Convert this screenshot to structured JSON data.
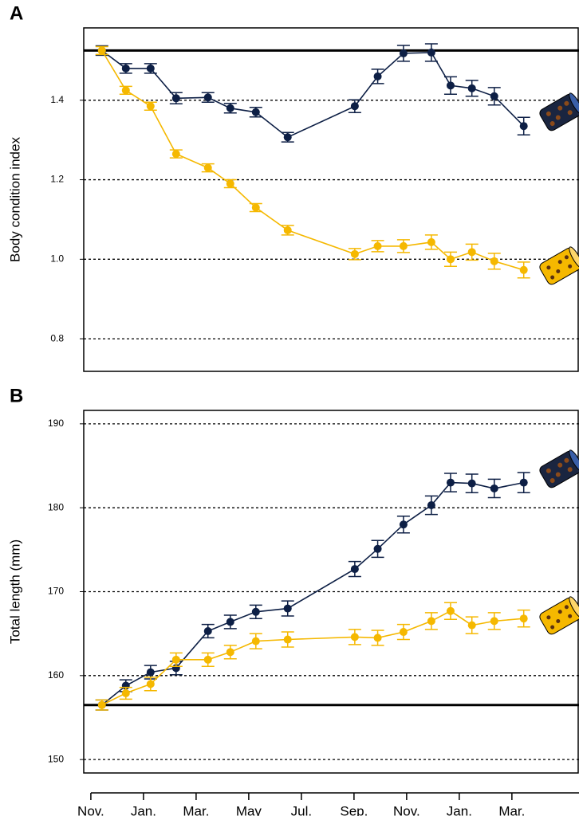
{
  "chart_data": [
    {
      "type": "line",
      "panel": "A",
      "ylabel": "Body condition index",
      "x": [
        0.42,
        1.33,
        2.27,
        3.24,
        4.45,
        5.3,
        6.27,
        7.48,
        10.03,
        10.9,
        11.88,
        12.94,
        13.67,
        14.48,
        15.33,
        16.45
      ],
      "xlim": [
        -0.27,
        18.55
      ],
      "ylim": [
        0.718,
        1.582
      ],
      "yticks": [
        0.8,
        {
          "value": 1,
          "label": "1.0"
        },
        1.2,
        1.4
      ],
      "grid": true,
      "reference": 1.525,
      "series": [
        {
          "color": "#0d1f45",
          "values": [
            1.525,
            1.48,
            1.48,
            1.405,
            1.407,
            1.38,
            1.37,
            1.307,
            1.385,
            1.46,
            1.518,
            1.52,
            1.437,
            1.43,
            1.41,
            1.335
          ],
          "errors": [
            0.012,
            0.012,
            0.012,
            0.014,
            0.012,
            0.012,
            0.012,
            0.012,
            0.016,
            0.018,
            0.02,
            0.022,
            0.022,
            0.02,
            0.022,
            0.022
          ]
        },
        {
          "color": "#f5b800",
          "values": [
            1.525,
            1.425,
            1.385,
            1.265,
            1.23,
            1.19,
            1.13,
            1.073,
            1.013,
            1.033,
            1.033,
            1.043,
            1.0,
            1.018,
            0.995,
            0.973
          ],
          "errors": [
            0.01,
            0.01,
            0.01,
            0.01,
            0.01,
            0.01,
            0.01,
            0.012,
            0.014,
            0.014,
            0.016,
            0.018,
            0.018,
            0.02,
            0.02,
            0.02
          ]
        }
      ]
    },
    {
      "type": "line",
      "panel": "B",
      "ylabel": "Total length (mm)",
      "x": [
        0.42,
        1.33,
        2.27,
        3.24,
        4.45,
        5.3,
        6.27,
        7.48,
        10.03,
        10.9,
        11.88,
        12.94,
        13.67,
        14.48,
        15.33,
        16.45
      ],
      "xlim": [
        -0.27,
        18.55
      ],
      "ylim": [
        148.4,
        191.6
      ],
      "xticks": [
        {
          "value": 0,
          "label": "Nov."
        },
        {
          "value": 2,
          "label": "Jan."
        },
        {
          "value": 4,
          "label": "Mar."
        },
        {
          "value": 6,
          "label": "May"
        },
        {
          "value": 8,
          "label": "Jul."
        },
        {
          "value": 10,
          "label": "Sep."
        },
        {
          "value": 12,
          "label": "Nov."
        },
        {
          "value": 14,
          "label": "Jan."
        },
        {
          "value": 16,
          "label": "Mar."
        }
      ],
      "yticks": [
        150,
        160,
        170,
        180,
        190
      ],
      "grid": true,
      "reference": 156.5,
      "series": [
        {
          "color": "#0d1f45",
          "values": [
            156.5,
            158.8,
            160.4,
            160.9,
            165.3,
            166.4,
            167.6,
            168.0,
            172.7,
            175.1,
            178.0,
            180.3,
            183.0,
            182.9,
            182.3,
            183.0
          ],
          "errors": [
            0.6,
            0.7,
            0.8,
            0.8,
            0.8,
            0.8,
            0.8,
            0.9,
            0.9,
            1.0,
            1.0,
            1.1,
            1.1,
            1.1,
            1.1,
            1.2
          ]
        },
        {
          "color": "#f5b800",
          "values": [
            156.5,
            157.9,
            159.0,
            161.9,
            161.9,
            162.8,
            164.1,
            164.3,
            164.6,
            164.5,
            165.2,
            166.5,
            167.7,
            166.0,
            166.5,
            166.8
          ],
          "errors": [
            0.6,
            0.7,
            0.8,
            0.8,
            0.8,
            0.8,
            0.9,
            0.9,
            0.9,
            0.9,
            0.9,
            1.0,
            1.0,
            1.0,
            1.0,
            1.0
          ]
        }
      ]
    }
  ]
}
